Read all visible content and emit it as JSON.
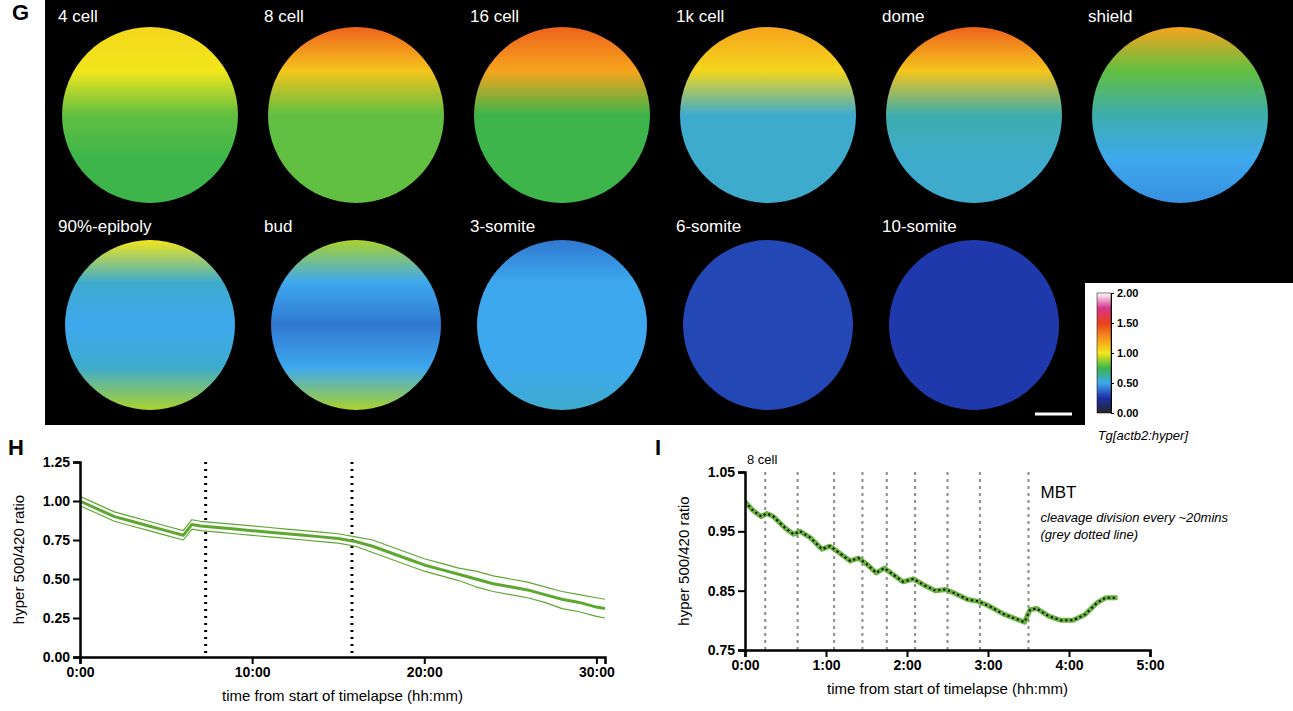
{
  "chart_data": [
    {
      "type": "image_grid",
      "panel": "G",
      "images": [
        {
          "label": "4 cell",
          "ratios": [
            1.05,
            1.0,
            0.8,
            0.75,
            0.75
          ]
        },
        {
          "label": "8 cell",
          "ratios": [
            1.4,
            1.1,
            0.8,
            0.8,
            0.8
          ]
        },
        {
          "label": "16 cell",
          "ratios": [
            1.4,
            1.2,
            0.75,
            0.75,
            0.75
          ]
        },
        {
          "label": "1k cell",
          "ratios": [
            1.2,
            1.05,
            0.55,
            0.55,
            0.55
          ]
        },
        {
          "label": "dome",
          "ratios": [
            1.4,
            1.1,
            0.6,
            0.55,
            0.55
          ]
        },
        {
          "label": "shield",
          "ratios": [
            1.2,
            0.8,
            0.6,
            0.5,
            0.45
          ]
        },
        {
          "label": "90%-epiboly",
          "ratios": [
            1.0,
            0.55,
            0.5,
            0.55,
            0.9
          ]
        },
        {
          "label": "bud",
          "ratios": [
            0.9,
            0.5,
            0.4,
            0.5,
            0.9
          ]
        },
        {
          "label": "3-somite",
          "ratios": [
            0.4,
            0.5,
            0.5,
            0.5,
            0.55
          ]
        },
        {
          "label": "6-somite",
          "ratios": [
            0.3,
            0.3,
            0.3,
            0.3,
            0.3
          ]
        },
        {
          "label": "10-somite",
          "ratios": [
            0.27,
            0.27,
            0.27,
            0.27,
            0.27
          ]
        }
      ],
      "colorbar_lim": [
        0,
        2
      ],
      "colorbar_ticks": [
        {
          "value": 0,
          "label": "0.00"
        },
        {
          "value": 0.5,
          "label": "0.50"
        },
        {
          "value": 1,
          "label": "1.00"
        },
        {
          "value": 1.5,
          "label": "1.50"
        },
        {
          "value": 2,
          "label": "2.00"
        }
      ],
      "annotation": "Tg[actb2:hyper]"
    },
    {
      "type": "line",
      "panel": "H",
      "xlabel": "time from start of timelapse (hh:mm)",
      "ylabel": "hyper 500/420 ratio",
      "x": [
        0,
        1,
        2,
        3,
        4,
        5,
        6,
        6.5,
        7,
        8,
        9,
        10,
        11,
        12,
        13,
        14,
        15,
        16,
        17,
        18,
        19,
        20,
        21,
        22,
        23,
        24,
        25,
        26,
        27,
        28,
        29,
        30,
        30.5
      ],
      "xlim": [
        0,
        30.5
      ],
      "xticks": [
        {
          "value": 0,
          "label": "0:00"
        },
        {
          "value": 10,
          "label": "10:00"
        },
        {
          "value": 20,
          "label": "20:00"
        },
        {
          "value": 30,
          "label": "30:00"
        }
      ],
      "ylim": [
        0,
        1.25
      ],
      "yticks": [
        {
          "value": 0,
          "label": "0.00"
        },
        0.25,
        {
          "value": 0.5,
          "label": "0.50"
        },
        0.75,
        {
          "value": 1,
          "label": "1.00"
        },
        1.25
      ],
      "vlines": [
        7.3,
        15.8
      ],
      "series": [
        {
          "color": "#5ea832",
          "values": [
            1.0,
            0.95,
            0.9,
            0.87,
            0.84,
            0.81,
            0.78,
            0.85,
            0.84,
            0.83,
            0.82,
            0.81,
            0.8,
            0.79,
            0.78,
            0.77,
            0.76,
            0.74,
            0.71,
            0.67,
            0.63,
            0.59,
            0.56,
            0.53,
            0.5,
            0.47,
            0.45,
            0.43,
            0.4,
            0.37,
            0.35,
            0.32,
            0.31
          ],
          "lower": [
            0.97,
            0.92,
            0.87,
            0.84,
            0.81,
            0.78,
            0.75,
            0.82,
            0.81,
            0.8,
            0.79,
            0.78,
            0.77,
            0.76,
            0.75,
            0.74,
            0.73,
            0.71,
            0.67,
            0.63,
            0.59,
            0.55,
            0.52,
            0.49,
            0.45,
            0.42,
            0.4,
            0.38,
            0.35,
            0.31,
            0.29,
            0.26,
            0.25
          ],
          "upper": [
            1.03,
            0.98,
            0.93,
            0.9,
            0.87,
            0.84,
            0.81,
            0.88,
            0.87,
            0.86,
            0.85,
            0.84,
            0.83,
            0.82,
            0.81,
            0.8,
            0.79,
            0.77,
            0.75,
            0.71,
            0.67,
            0.63,
            0.6,
            0.57,
            0.55,
            0.52,
            0.5,
            0.48,
            0.45,
            0.42,
            0.4,
            0.38,
            0.37
          ]
        }
      ]
    },
    {
      "type": "line",
      "panel": "I",
      "xlabel": "time from start of timelapse (hh:mm)",
      "ylabel": "hyper 500/420 ratio",
      "x": [
        0,
        0.1,
        0.2,
        0.27,
        0.35,
        0.5,
        0.6,
        0.68,
        0.8,
        0.95,
        1.05,
        1.15,
        1.3,
        1.4,
        1.5,
        1.62,
        1.72,
        1.82,
        1.95,
        2.08,
        2.2,
        2.35,
        2.48,
        2.6,
        2.75,
        2.88,
        3.0,
        3.2,
        3.45,
        3.52,
        3.6,
        3.75,
        3.9,
        4.05,
        4.2,
        4.35,
        4.45,
        4.6
      ],
      "xlim": [
        0,
        5
      ],
      "xticks": [
        {
          "value": 0,
          "label": "0:00"
        },
        {
          "value": 1,
          "label": "1:00"
        },
        {
          "value": 2,
          "label": "2:00"
        },
        {
          "value": 3,
          "label": "3:00"
        },
        {
          "value": 4,
          "label": "4:00"
        },
        {
          "value": 5,
          "label": "5:00"
        }
      ],
      "ylim": [
        0.75,
        1.05
      ],
      "yticks": [
        0.75,
        0.85,
        0.95,
        1.05
      ],
      "vlines": [
        0.25,
        0.65,
        1.1,
        1.45,
        1.75,
        2.1,
        2.5,
        2.9,
        3.5
      ],
      "annotations": [
        "8 cell",
        "MBT",
        "cleavage division every ~20mins",
        "(grey dotted line)"
      ],
      "series": [
        {
          "color": "#6ab23e",
          "line_style": "dotted",
          "values": [
            1.0,
            0.985,
            0.975,
            0.98,
            0.975,
            0.955,
            0.945,
            0.95,
            0.94,
            0.92,
            0.925,
            0.915,
            0.9,
            0.905,
            0.895,
            0.88,
            0.888,
            0.878,
            0.865,
            0.87,
            0.86,
            0.85,
            0.852,
            0.845,
            0.835,
            0.832,
            0.825,
            0.81,
            0.797,
            0.818,
            0.82,
            0.807,
            0.8,
            0.8,
            0.81,
            0.83,
            0.838,
            0.838
          ]
        }
      ]
    }
  ]
}
